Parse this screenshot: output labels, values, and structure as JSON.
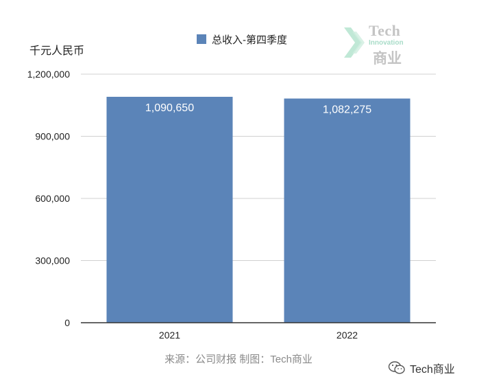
{
  "legend": {
    "label": "总收入-第四季度",
    "color": "#5b84b8"
  },
  "unit_label": "千元人民币",
  "logo": {
    "line1": "Tech",
    "line2": "Innovation",
    "line3": "商业"
  },
  "source_note": "来源：公司财报 制图：Tech商业",
  "watermark": {
    "text": "Tech商业",
    "icon": "wechat-icon"
  },
  "chart_data": {
    "type": "bar",
    "title": "",
    "xlabel": "",
    "ylabel": "千元人民币",
    "categories": [
      "2021",
      "2022"
    ],
    "series": [
      {
        "name": "总收入-第四季度",
        "values": [
          1090650,
          1082275
        ],
        "color": "#5b84b8"
      }
    ],
    "data_labels": [
      "1,090,650",
      "1,082,275"
    ],
    "ylim": [
      0,
      1200000
    ],
    "yticks": [
      0,
      300000,
      600000,
      900000,
      1200000
    ],
    "ytick_labels": [
      "0",
      "300,000",
      "600,000",
      "900,000",
      "1,200,000"
    ],
    "grid": true,
    "legend_position": "top-center"
  }
}
